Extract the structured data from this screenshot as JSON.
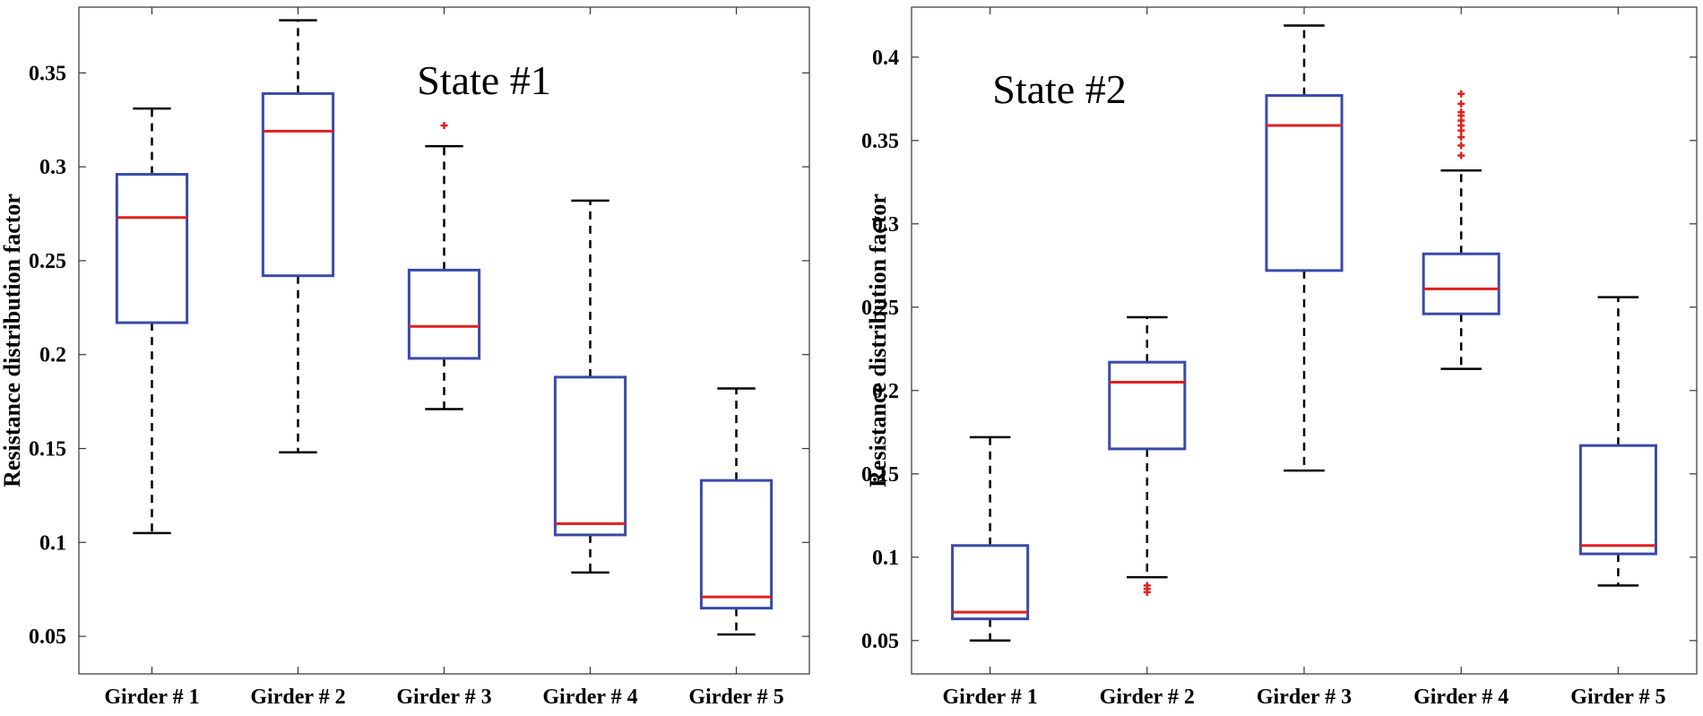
{
  "chart_data": [
    {
      "type": "box",
      "title": "State #1",
      "ylabel": "Resistance distribution factor",
      "xlabel": "",
      "ylim": [
        0.03,
        0.385
      ],
      "yticks": [
        0.05,
        0.1,
        0.15,
        0.2,
        0.25,
        0.3,
        0.35
      ],
      "ytick_labels": [
        "0.05",
        "0.1",
        "0.15",
        "0.2",
        "0.25",
        "0.3",
        "0.35"
      ],
      "categories": [
        "Girder # 1",
        "Girder # 2",
        "Girder # 3",
        "Girder # 4",
        "Girder # 5"
      ],
      "boxes": [
        {
          "whisker_low": 0.105,
          "q1": 0.217,
          "median": 0.273,
          "q3": 0.296,
          "whisker_high": 0.331,
          "outliers": []
        },
        {
          "whisker_low": 0.148,
          "q1": 0.242,
          "median": 0.319,
          "q3": 0.339,
          "whisker_high": 0.378,
          "outliers": []
        },
        {
          "whisker_low": 0.171,
          "q1": 0.198,
          "median": 0.215,
          "q3": 0.245,
          "whisker_high": 0.311,
          "outliers": [
            0.322
          ]
        },
        {
          "whisker_low": 0.084,
          "q1": 0.104,
          "median": 0.11,
          "q3": 0.188,
          "whisker_high": 0.282,
          "outliers": []
        },
        {
          "whisker_low": 0.051,
          "q1": 0.065,
          "median": 0.071,
          "q3": 0.133,
          "whisker_high": 0.182,
          "outliers": []
        }
      ],
      "grid": false,
      "colors": {
        "box": "#3a4aa8",
        "median": "#e02020",
        "whisker": "#000000",
        "outlier": "#e02020"
      }
    },
    {
      "type": "box",
      "title": "State #2",
      "ylabel": "Resistance distribution factor",
      "xlabel": "",
      "ylim": [
        0.03,
        0.43
      ],
      "yticks": [
        0.05,
        0.1,
        0.15,
        0.2,
        0.25,
        0.3,
        0.35,
        0.4
      ],
      "ytick_labels": [
        "0.05",
        "0.1",
        "0.15",
        "0.2",
        "0.25",
        "0.3",
        "0.35",
        "0.4"
      ],
      "categories": [
        "Girder # 1",
        "Girder # 2",
        "Girder # 3",
        "Girder # 4",
        "Girder # 5"
      ],
      "boxes": [
        {
          "whisker_low": 0.05,
          "q1": 0.063,
          "median": 0.067,
          "q3": 0.107,
          "whisker_high": 0.172,
          "outliers": []
        },
        {
          "whisker_low": 0.088,
          "q1": 0.165,
          "median": 0.205,
          "q3": 0.217,
          "whisker_high": 0.244,
          "outliers": [
            0.079,
            0.081,
            0.083
          ]
        },
        {
          "whisker_low": 0.152,
          "q1": 0.272,
          "median": 0.359,
          "q3": 0.377,
          "whisker_high": 0.419,
          "outliers": []
        },
        {
          "whisker_low": 0.213,
          "q1": 0.246,
          "median": 0.261,
          "q3": 0.282,
          "whisker_high": 0.332,
          "outliers": [
            0.341,
            0.347,
            0.352,
            0.356,
            0.359,
            0.362,
            0.365,
            0.367,
            0.372,
            0.378
          ]
        },
        {
          "whisker_low": 0.083,
          "q1": 0.102,
          "median": 0.107,
          "q3": 0.167,
          "whisker_high": 0.256,
          "outliers": []
        }
      ],
      "grid": false,
      "colors": {
        "box": "#3a4aa8",
        "median": "#e02020",
        "whisker": "#000000",
        "outlier": "#e02020"
      }
    }
  ]
}
